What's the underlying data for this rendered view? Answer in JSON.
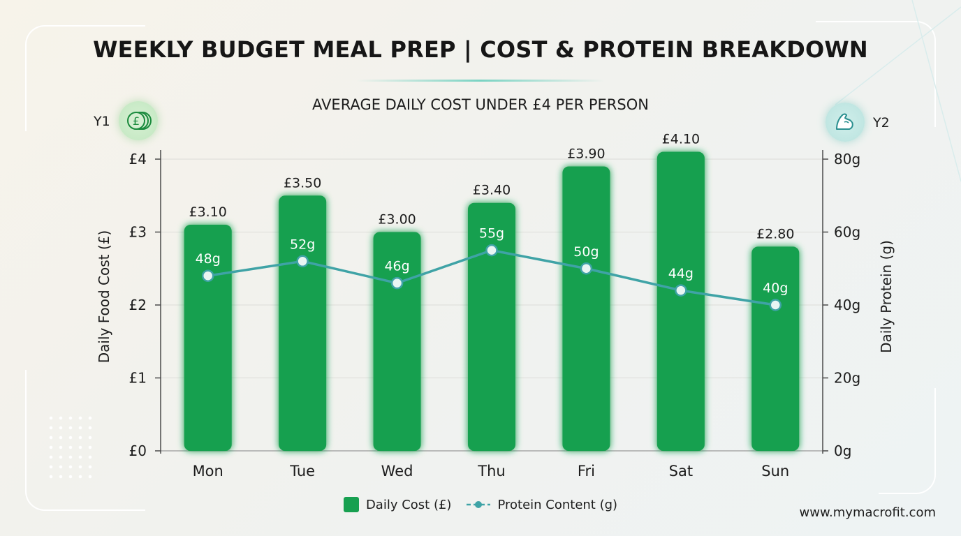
{
  "title": "WEEKLY BUDGET MEAL PREP | COST & PROTEIN BREAKDOWN",
  "subtitle": "AVERAGE DAILY COST UNDER £4 PER PERSON",
  "y1_tag": "Y1",
  "y2_tag": "Y2",
  "y1_icon": "pound-coins-icon",
  "y2_icon": "flexed-arm-icon",
  "footer_url": "www.mymacrofit.com",
  "colors": {
    "bar": "#17a050",
    "line": "#3fa3a6",
    "accent_teal": "#7ad3c3"
  },
  "legend": {
    "cost_label": "Daily Cost (£)",
    "protein_label": "Protein Content (g)"
  },
  "chart_data": {
    "type": "bar",
    "categories": [
      "Mon",
      "Tue",
      "Wed",
      "Thu",
      "Fri",
      "Sat",
      "Sun"
    ],
    "series": [
      {
        "name": "Daily Cost (£)",
        "type": "bar",
        "axis": "y1",
        "values": [
          3.1,
          3.5,
          3.0,
          3.4,
          3.9,
          4.1,
          2.8
        ],
        "labels": [
          "£3.10",
          "£3.50",
          "£3.00",
          "£3.40",
          "£3.90",
          "£4.10",
          "£2.80"
        ]
      },
      {
        "name": "Protein Content (g)",
        "type": "line",
        "axis": "y2",
        "values": [
          48,
          52,
          46,
          55,
          50,
          44,
          40
        ],
        "labels": [
          "48g",
          "52g",
          "46g",
          "55g",
          "50g",
          "44g",
          "40g"
        ]
      }
    ],
    "ylabel": "Daily Food Cost (£)",
    "y2label": "Daily Protein (g)",
    "ylim": [
      0,
      4
    ],
    "y2lim": [
      0,
      80
    ],
    "yticks": [
      "£0",
      "£1",
      "£2",
      "£3",
      "£4"
    ],
    "y2ticks": [
      "0g",
      "20g",
      "40g",
      "60g",
      "80g"
    ],
    "grid": true,
    "legend_position": "bottom"
  }
}
